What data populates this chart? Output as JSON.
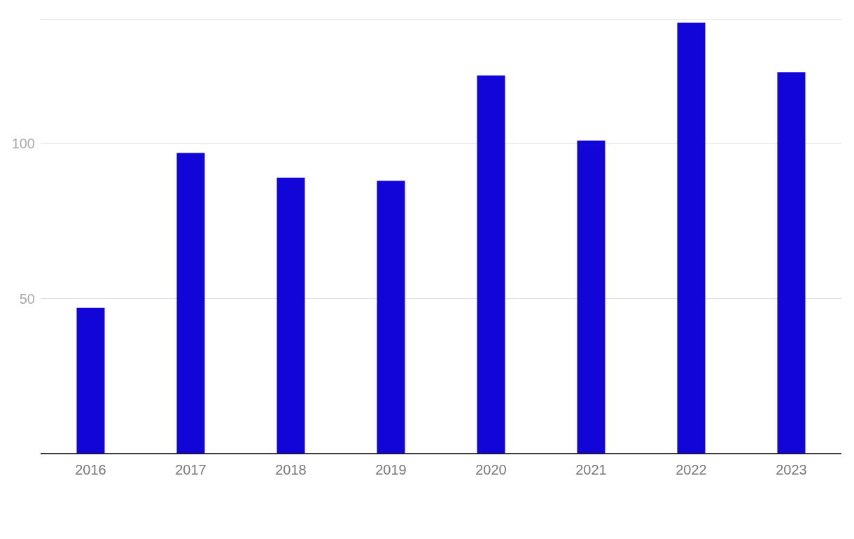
{
  "chart_data": {
    "type": "bar",
    "categories": [
      "2016",
      "2017",
      "2018",
      "2019",
      "2020",
      "2021",
      "2022",
      "2023"
    ],
    "values": [
      47,
      97,
      89,
      88,
      122,
      101,
      139,
      123
    ],
    "color": "#1205d8",
    "ylim": [
      0,
      140
    ],
    "yticks": [
      {
        "value": 0,
        "label": null
      },
      50,
      100
    ],
    "grid": "y"
  }
}
